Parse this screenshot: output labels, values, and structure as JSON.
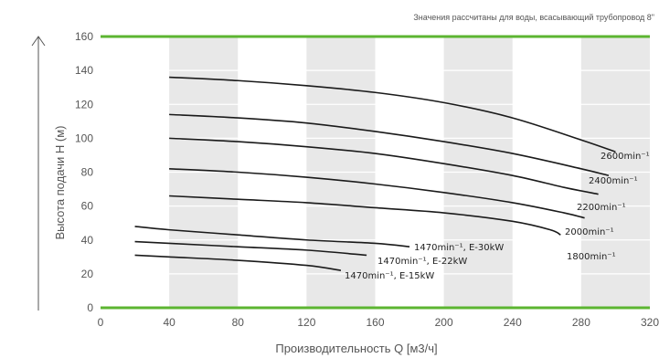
{
  "chart_data": {
    "type": "line",
    "note": "Значения рассчитаны для воды, всасывающий трубопровод 8\"",
    "xlabel": "Производительность Q [м3/ч]",
    "ylabel": "Высота подачи H (м)",
    "xlim": [
      0,
      320
    ],
    "ylim": [
      0,
      160
    ],
    "x_ticks": [
      "0",
      "40",
      "80",
      "120",
      "160",
      "200",
      "240",
      "280",
      "320"
    ],
    "y_ticks": [
      "0",
      "20",
      "40",
      "60",
      "80",
      "100",
      "120",
      "140",
      "160"
    ],
    "shaded_bands": [
      [
        40,
        80
      ],
      [
        120,
        160
      ],
      [
        200,
        240
      ],
      [
        280,
        320
      ]
    ],
    "colors": {
      "band": "#e8e8e8",
      "gridline_green": "#5cb531",
      "curve": "#1a1a1a",
      "text": "#555555"
    },
    "series": [
      {
        "name": "2600min⁻¹",
        "x": [
          40,
          80,
          120,
          160,
          200,
          240,
          280,
          300
        ],
        "y": [
          136,
          134,
          131,
          127,
          121,
          112,
          99,
          92
        ]
      },
      {
        "name": "2400min⁻¹",
        "x": [
          40,
          80,
          120,
          160,
          200,
          240,
          280,
          296
        ],
        "y": [
          114,
          112,
          109,
          104,
          98,
          91,
          82,
          78
        ]
      },
      {
        "name": "2200min⁻¹",
        "x": [
          40,
          80,
          120,
          160,
          200,
          240,
          270,
          290
        ],
        "y": [
          100,
          98,
          95,
          91,
          85,
          78,
          71,
          67
        ]
      },
      {
        "name": "2000min⁻¹",
        "x": [
          40,
          80,
          120,
          160,
          200,
          240,
          270,
          282
        ],
        "y": [
          82,
          80,
          77,
          73,
          68,
          62,
          56,
          53
        ]
      },
      {
        "name": "1800min⁻¹",
        "x": [
          40,
          80,
          120,
          160,
          200,
          240,
          262,
          268
        ],
        "y": [
          66,
          64,
          62,
          59,
          56,
          51,
          46,
          43
        ]
      },
      {
        "name": "1470min⁻¹, E-30kW",
        "x": [
          20,
          40,
          80,
          120,
          160,
          180
        ],
        "y": [
          48,
          46,
          43,
          40,
          38,
          36
        ]
      },
      {
        "name": "1470min⁻¹, E-22kW",
        "x": [
          20,
          40,
          80,
          120,
          155
        ],
        "y": [
          39,
          38,
          36,
          34,
          31
        ]
      },
      {
        "name": "1470min⁻¹, E-15kW",
        "x": [
          20,
          40,
          80,
          120,
          140
        ],
        "y": [
          31,
          30,
          28,
          25,
          22
        ]
      }
    ]
  }
}
